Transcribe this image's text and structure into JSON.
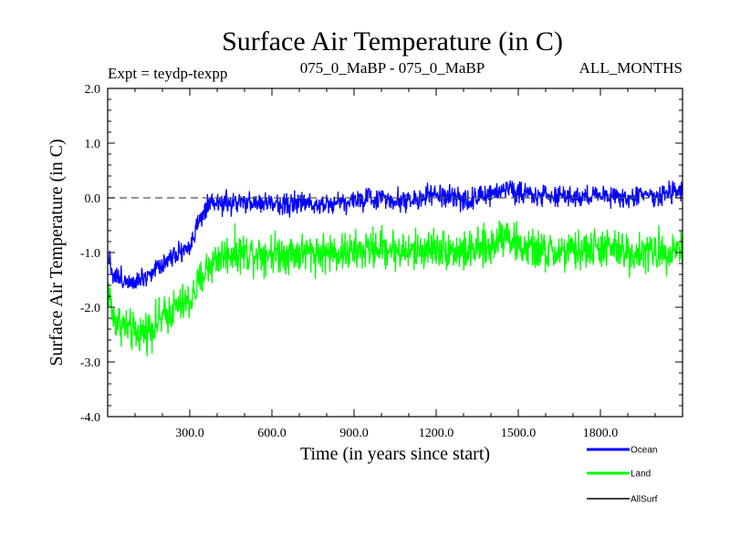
{
  "chart_data": {
    "type": "line",
    "title": "Surface Air Temperature (in C)",
    "expt_label": "Expt = teydp-texpp",
    "subtitle": "075_0_MaBP - 075_0_MaBP",
    "months_label": "ALL_MONTHS",
    "xlabel": "Time (in years since start)",
    "ylabel": "Surface Air Temperature (in C)",
    "xlim": [
      0,
      2100
    ],
    "ylim": [
      -4.0,
      2.0
    ],
    "xticks": [
      300,
      600,
      900,
      1200,
      1500,
      1800
    ],
    "xtick_labels": [
      "300.0",
      "600.0",
      "900.0",
      "1200.0",
      "1500.0",
      "1800.0"
    ],
    "yticks": [
      -4,
      -3,
      -2,
      -1,
      0,
      1,
      2
    ],
    "ytick_labels": [
      "-4.0",
      "-3.0",
      "-2.0",
      "-1.0",
      "0.0",
      "1.0",
      "2.0"
    ],
    "reference_line": 0.0,
    "series": [
      {
        "name": "Land",
        "color": "#00ff00",
        "x": [
          0,
          20,
          50,
          100,
          150,
          200,
          250,
          300,
          330,
          360,
          400,
          450,
          500,
          600,
          700,
          800,
          900,
          1000,
          1100,
          1200,
          1300,
          1400,
          1450,
          1500,
          1600,
          1700,
          1800,
          1900,
          2000,
          2100
        ],
        "values": [
          -1.6,
          -2.2,
          -2.3,
          -2.5,
          -2.4,
          -2.2,
          -2.0,
          -1.9,
          -1.6,
          -1.3,
          -1.1,
          -1.0,
          -1.0,
          -1.0,
          -1.0,
          -1.0,
          -1.0,
          -0.9,
          -1.0,
          -0.9,
          -1.0,
          -0.9,
          -0.6,
          -0.9,
          -1.0,
          -1.0,
          -0.9,
          -1.0,
          -1.0,
          -0.9
        ],
        "noise": 0.55
      },
      {
        "name": "Ocean",
        "color": "#0000ff",
        "x": [
          0,
          20,
          50,
          100,
          150,
          200,
          250,
          300,
          330,
          360,
          400,
          450,
          500,
          600,
          700,
          800,
          900,
          1000,
          1100,
          1200,
          1300,
          1400,
          1450,
          1500,
          1600,
          1700,
          1800,
          1900,
          2000,
          2100
        ],
        "values": [
          -1.0,
          -1.4,
          -1.5,
          -1.5,
          -1.4,
          -1.2,
          -1.0,
          -0.9,
          -0.5,
          -0.2,
          -0.1,
          -0.1,
          -0.1,
          -0.1,
          -0.1,
          -0.1,
          -0.05,
          0.0,
          -0.05,
          0.05,
          -0.05,
          0.05,
          0.2,
          0.1,
          0.05,
          0.0,
          0.05,
          0.0,
          0.05,
          0.1
        ],
        "noise": 0.3
      },
      {
        "name": "AllSurf",
        "color": "#000000",
        "x": [],
        "values": []
      }
    ],
    "legend": [
      "Ocean",
      "Land",
      "AllSurf"
    ],
    "legend_position": "bottom-right"
  }
}
